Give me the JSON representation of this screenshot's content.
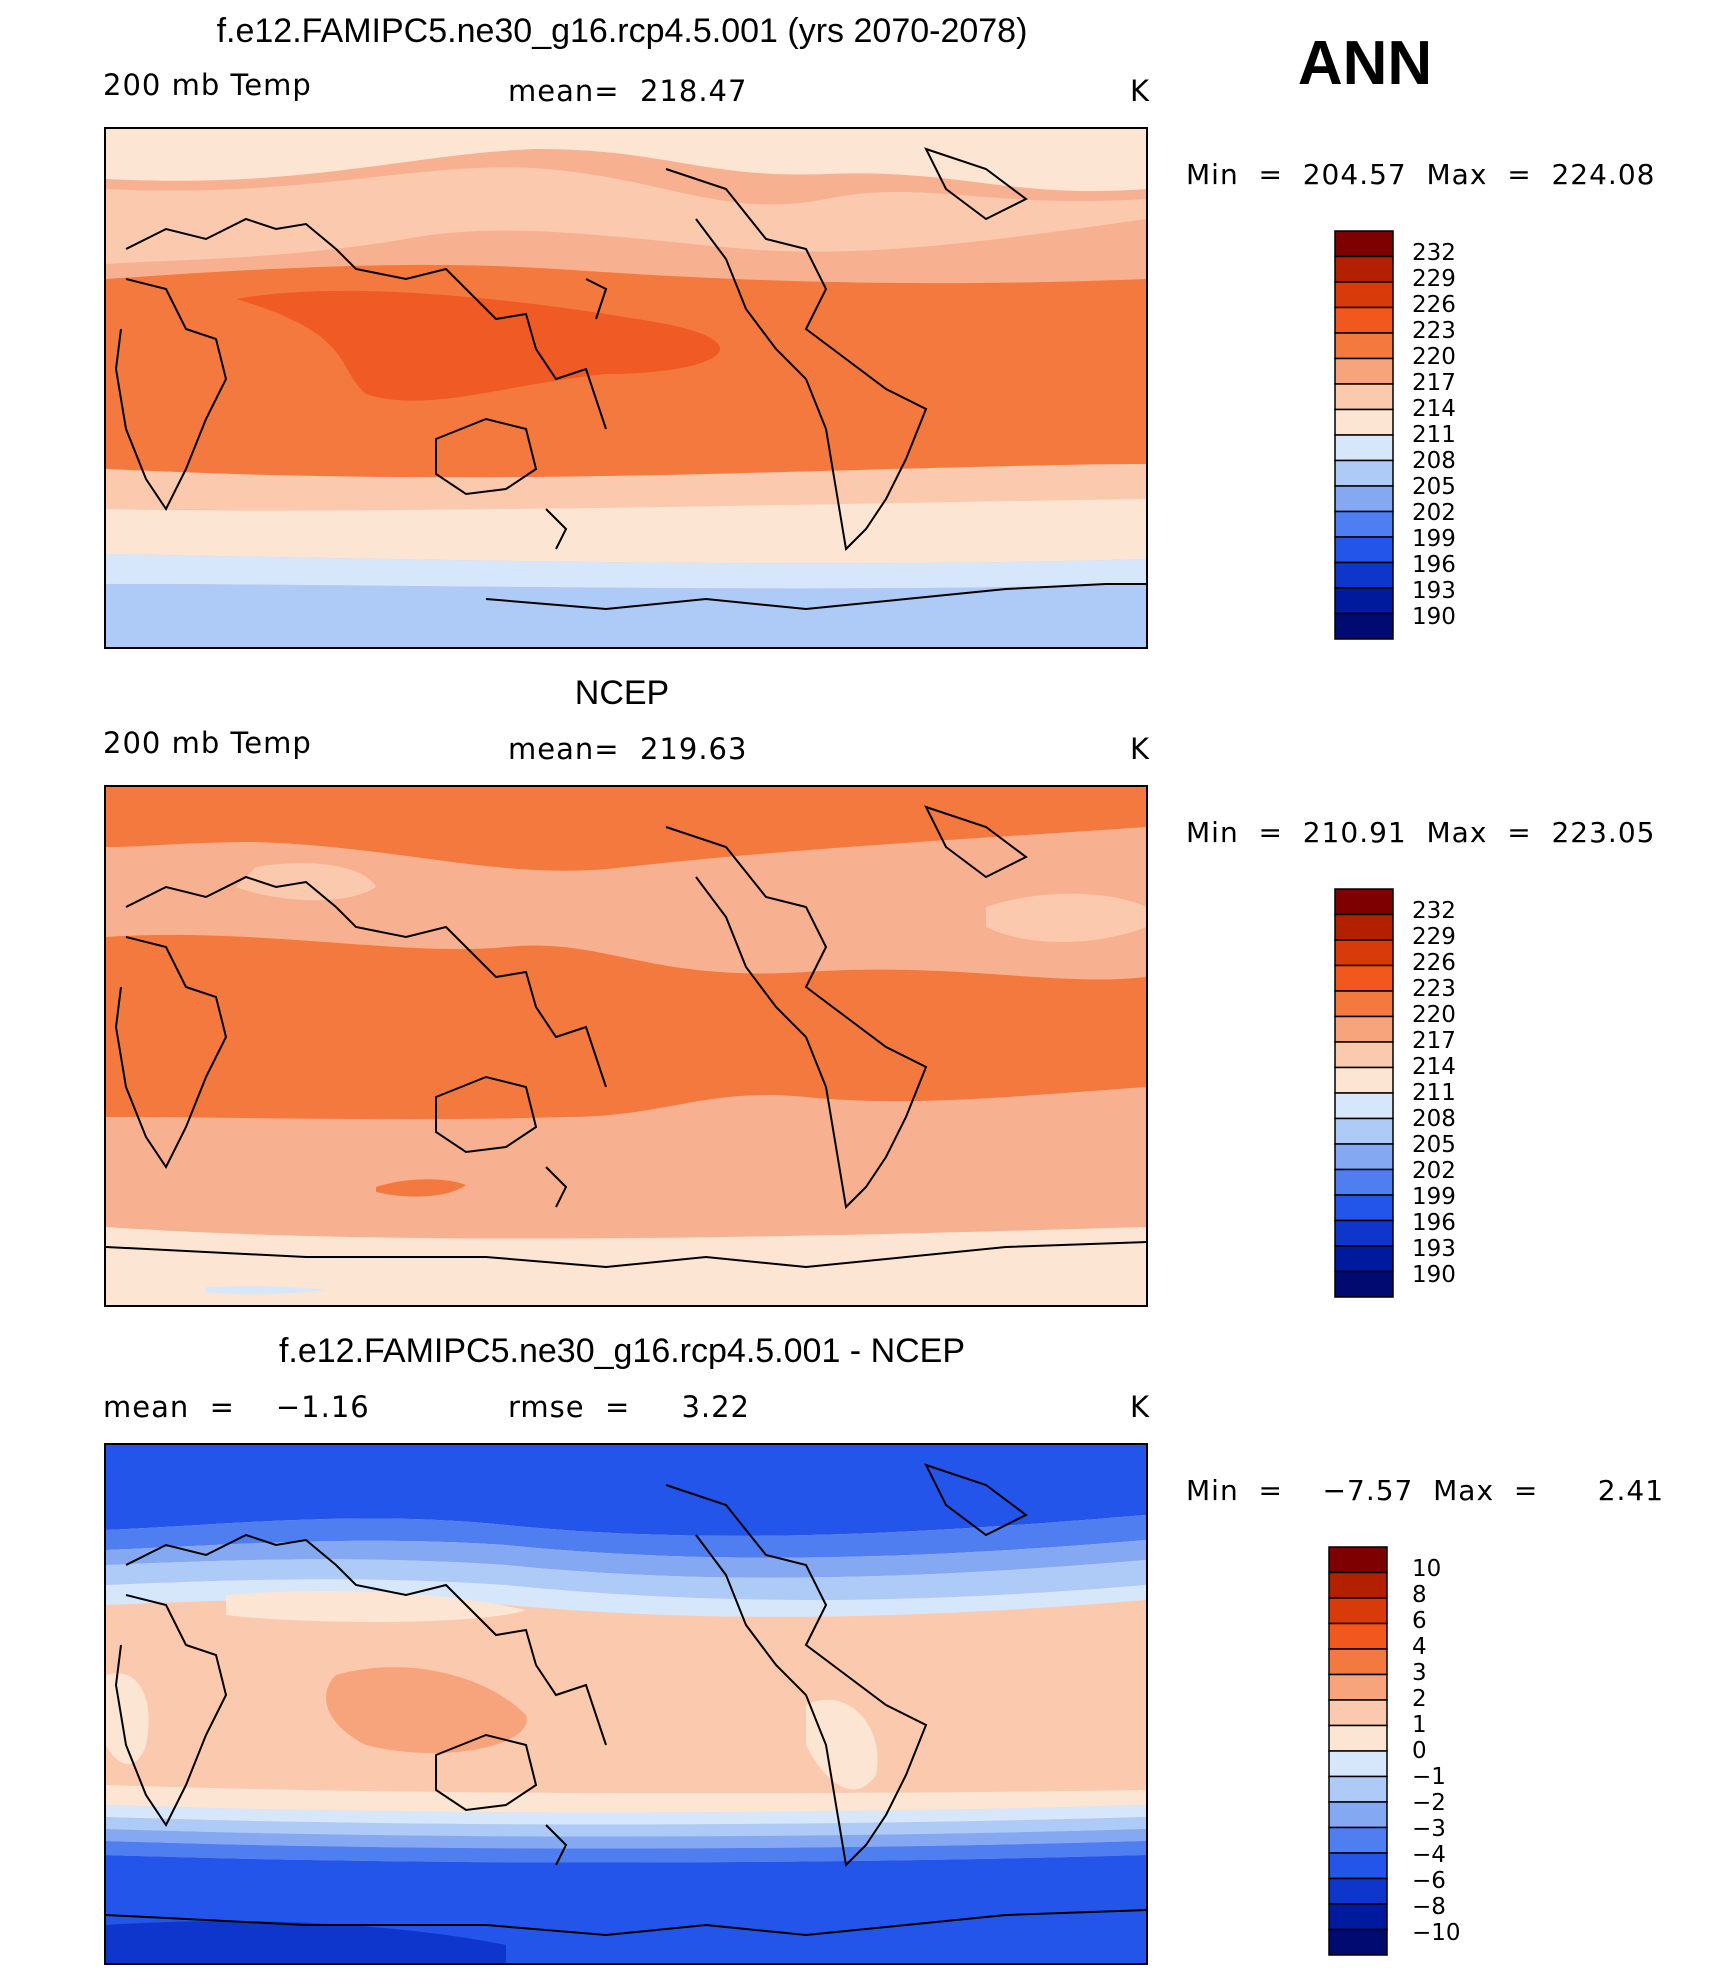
{
  "season": "ANN",
  "panels": [
    {
      "title": "f.e12.FAMIPC5.ne30_g16.rcp4.5.001 (yrs 2070-2078)",
      "left": "200 mb Temp",
      "center": "mean=  218.47",
      "right": "K",
      "minmax": "Min  =  204.57  Max  =  224.08",
      "colorbar_labels": [
        "232",
        "229",
        "226",
        "223",
        "220",
        "217",
        "214",
        "211",
        "208",
        "205",
        "202",
        "199",
        "196",
        "193",
        "190"
      ]
    },
    {
      "title": "NCEP",
      "left": "200 mb Temp",
      "center": "mean=  219.63",
      "right": "K",
      "minmax": "Min  =  210.91  Max  =  223.05",
      "colorbar_labels": [
        "232",
        "229",
        "226",
        "223",
        "220",
        "217",
        "214",
        "211",
        "208",
        "205",
        "202",
        "199",
        "196",
        "193",
        "190"
      ]
    },
    {
      "title": "f.e12.FAMIPC5.ne30_g16.rcp4.5.001 - NCEP",
      "left": "mean  =    −1.16",
      "center": "rmse  =     3.22",
      "right": "K",
      "minmax": "Min  =    −7.57  Max  =      2.41",
      "colorbar_labels": [
        "10",
        "8",
        "6",
        "4",
        "3",
        "2",
        "1",
        "0",
        "−1",
        "−2",
        "−3",
        "−4",
        "−6",
        "−8",
        "−10"
      ]
    }
  ],
  "colors": [
    "#7f0000",
    "#b22000",
    "#d93a0a",
    "#f2581e",
    "#f4793f",
    "#f7a47c",
    "#fbc9ad",
    "#fde5d3",
    "#d6e6fb",
    "#aecaf6",
    "#84a9f2",
    "#4f7ef0",
    "#2355eb",
    "#0f36cc",
    "#001a9e",
    "#000a70"
  ]
}
